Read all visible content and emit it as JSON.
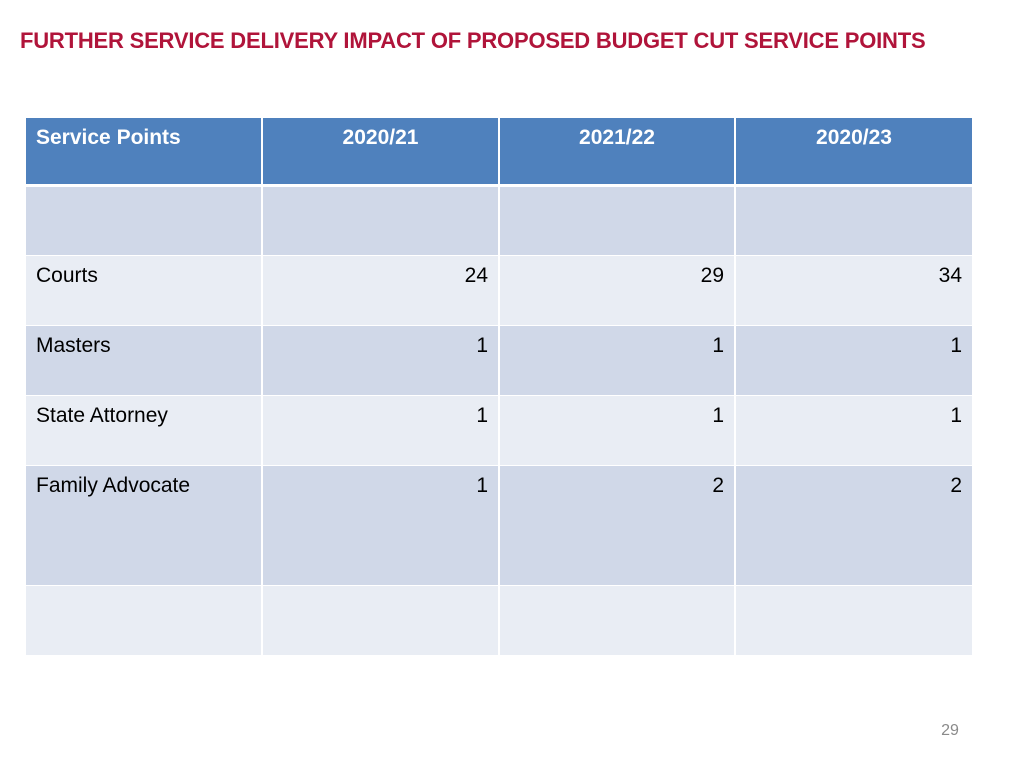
{
  "slide": {
    "title": "FURTHER SERVICE DELIVERY IMPACT OF PROPOSED BUDGET CUT SERVICE POINTS",
    "page_number": "29"
  },
  "table": {
    "headers": [
      "Service Points",
      "2020/21",
      "2021/22",
      "2020/23"
    ],
    "rows": [
      [
        "",
        "",
        "",
        ""
      ],
      [
        "Courts",
        "24",
        "29",
        "34"
      ],
      [
        "Masters",
        "1",
        "1",
        "1"
      ],
      [
        "State Attorney",
        "1",
        "1",
        "1"
      ],
      [
        "Family Advocate",
        "1",
        "2",
        "2"
      ],
      [
        "",
        "",
        "",
        ""
      ]
    ]
  },
  "colors": {
    "title": "#b0143a",
    "header_bg": "#4f81bd",
    "row_dark": "#d0d8e8",
    "row_light": "#e9edf4"
  }
}
